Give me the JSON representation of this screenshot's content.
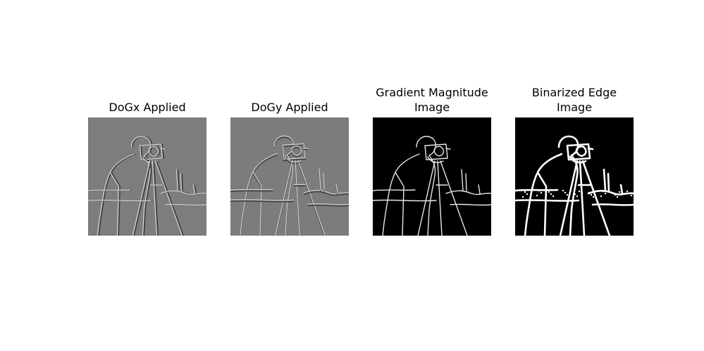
{
  "figure": {
    "panels": [
      {
        "title": "DoGx Applied",
        "background": "#7d7d7d",
        "stroke_light": "#d6d6d6",
        "stroke_dark": "#3c3c3c"
      },
      {
        "title": "DoGy Applied",
        "background": "#7c7c7c",
        "stroke_light": "#d2d2d2",
        "stroke_dark": "#3e3e3e"
      },
      {
        "title": "Gradient Magnitude\nImage",
        "background": "#000000",
        "stroke_light": "#e6e6e6",
        "stroke_dark": "#5a5a5a"
      },
      {
        "title": "Binarized Edge\nImage",
        "background": "#000000",
        "stroke_light": "#ffffff",
        "stroke_dark": "#ffffff"
      }
    ]
  }
}
